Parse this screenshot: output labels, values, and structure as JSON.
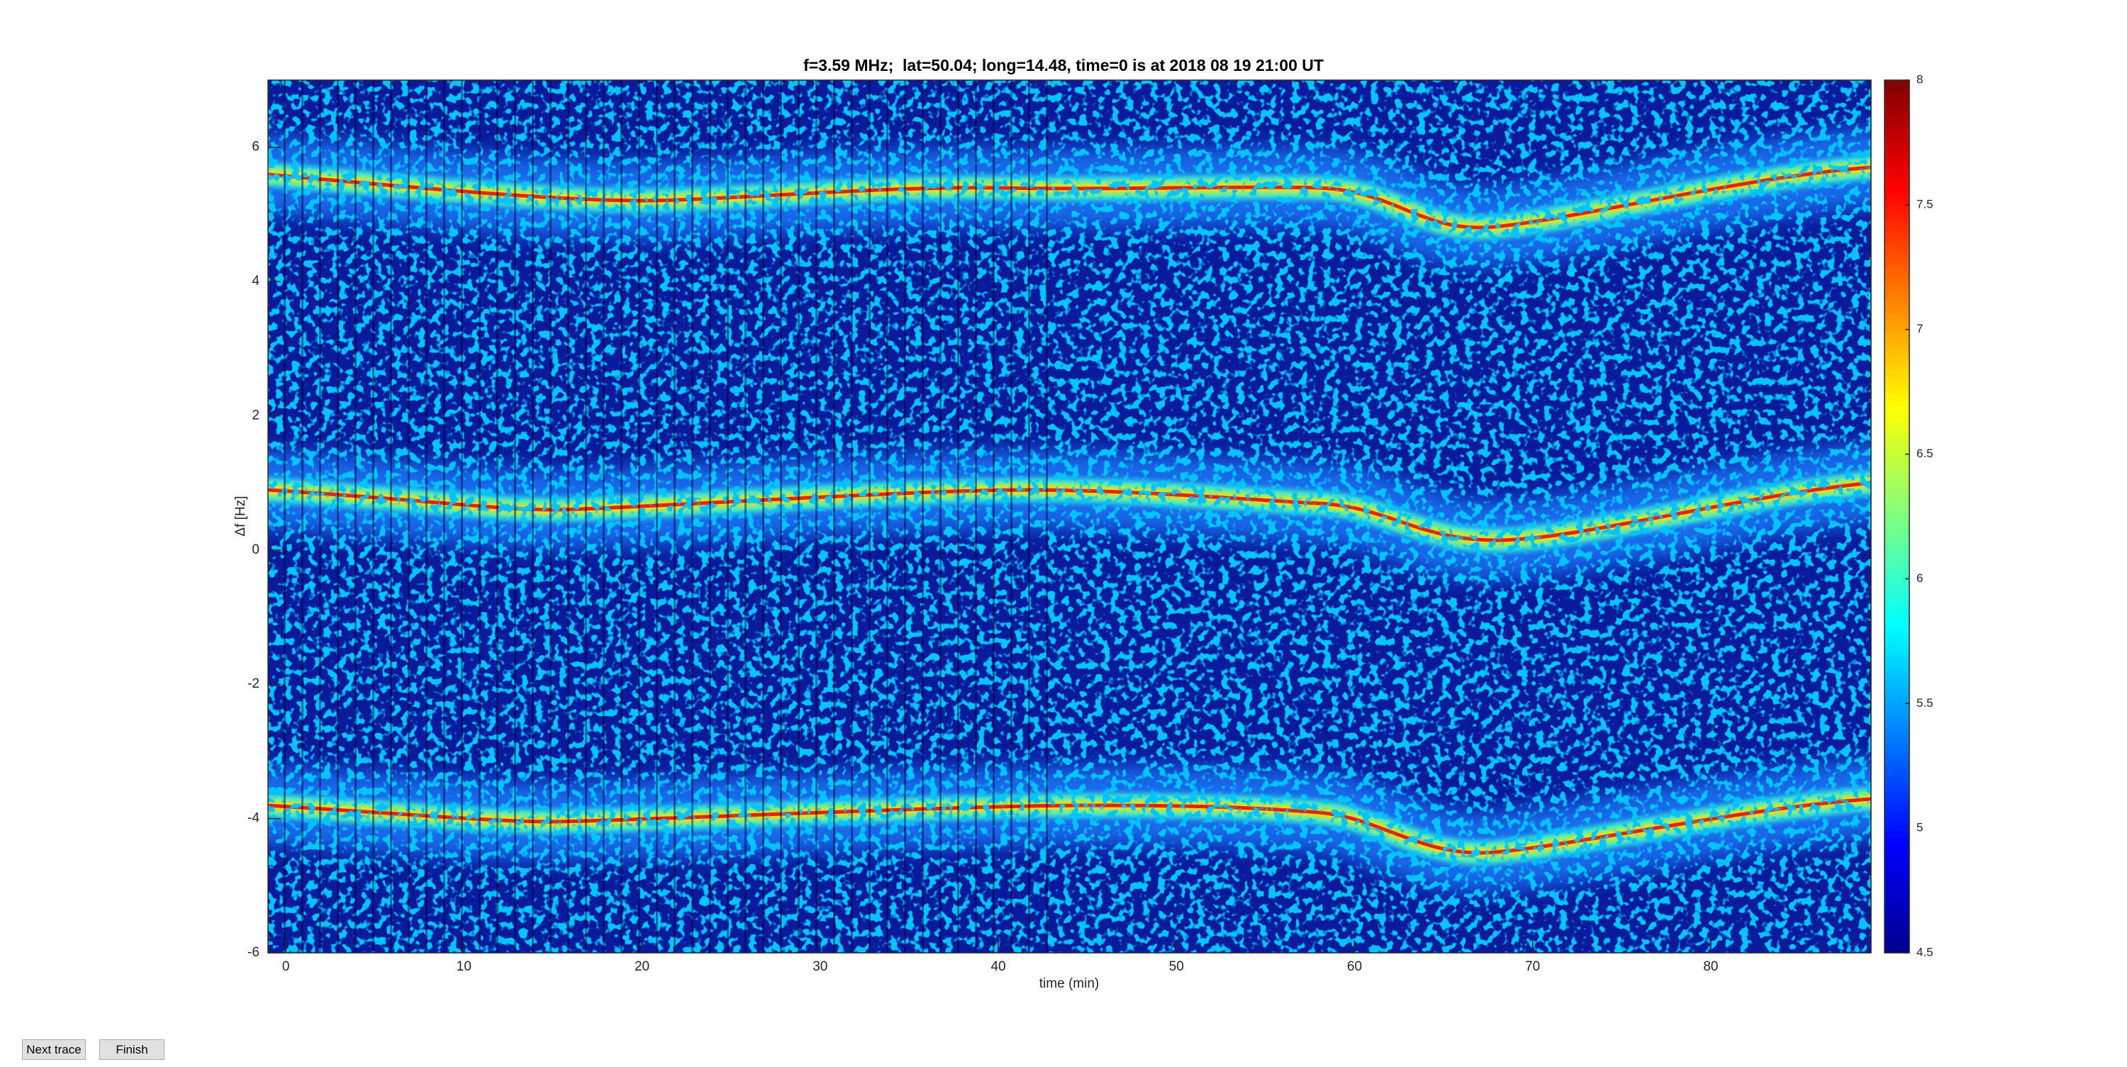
{
  "chart_data": {
    "type": "heatmap",
    "title": "f=3.59 MHz;  lat=50.04; long=14.48, time=0 is at 2018 08 19 21:00 UT",
    "x_label": "time (min)",
    "y_label": "Δf [Hz]",
    "xlim": [
      -1,
      89
    ],
    "xticks": [
      0,
      10,
      20,
      30,
      40,
      50,
      60,
      70,
      80
    ],
    "ylim": [
      -6,
      7
    ],
    "yticks": [
      -6,
      -4,
      -2,
      0,
      2,
      4,
      6
    ],
    "colormap": "jet",
    "clim": [
      4.5,
      8
    ],
    "cticks": [
      4.5,
      5,
      5.5,
      6,
      6.5,
      7,
      7.5,
      8
    ]
  },
  "buttons": [
    {
      "label": "Next trace"
    },
    {
      "label": "Finish"
    }
  ]
}
